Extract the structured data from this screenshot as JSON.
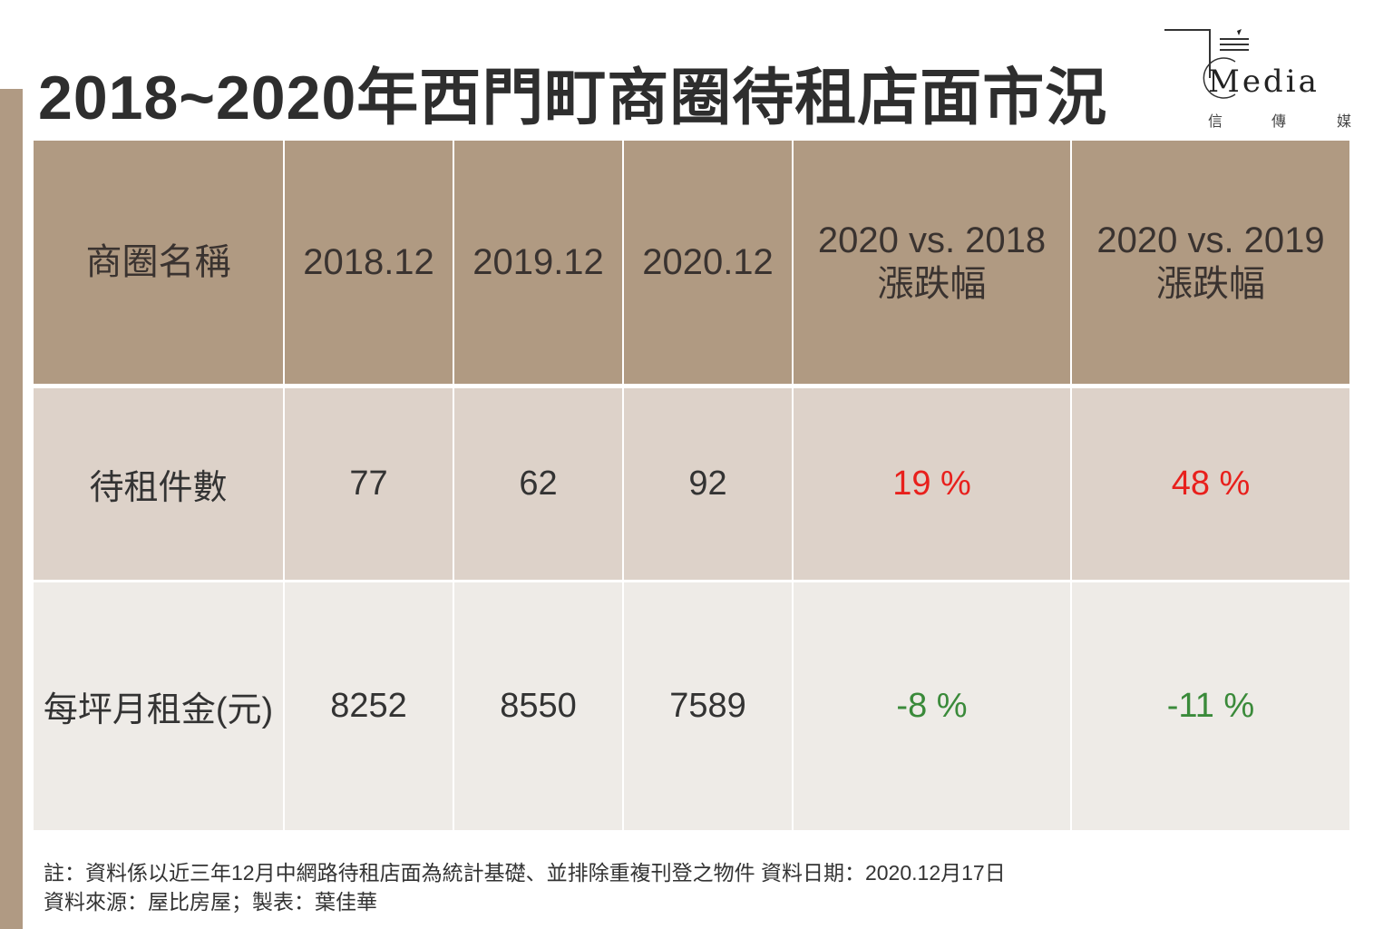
{
  "title": "2018~2020年西門町商圈待租店面市況",
  "logo": {
    "word": "Media",
    "sub": [
      "信",
      "傳",
      "媒"
    ]
  },
  "colors": {
    "header": "#b09a82",
    "row1": "#ddd2c9",
    "row2": "#eeebe7",
    "increase": "#e8201c",
    "decrease": "#3a8a3a"
  },
  "chart_data": {
    "type": "table",
    "title": "2018~2020年西門町商圈待租店面市況",
    "columns": [
      "商圈名稱",
      "2018.12",
      "2019.12",
      "2020.12",
      [
        "2020 vs. 2018",
        "漲跌幅"
      ],
      [
        "2020 vs. 2019",
        "漲跌幅"
      ]
    ],
    "rows": [
      {
        "label": "待租件數",
        "values": [
          "77",
          "62",
          "92"
        ],
        "changes": [
          "19 %",
          "48 %"
        ]
      },
      {
        "label": "每坪月租金(元)",
        "values": [
          "8252",
          "8550",
          "7589"
        ],
        "changes": [
          "-8 %",
          "-11 %"
        ]
      }
    ]
  },
  "notes": [
    "註：資料係以近三年12月中網路待租店面為統計基礎、並排除重複刊登之物件 資料日期：2020.12月17日",
    "資料來源：屋比房屋；製表：葉佳華"
  ]
}
